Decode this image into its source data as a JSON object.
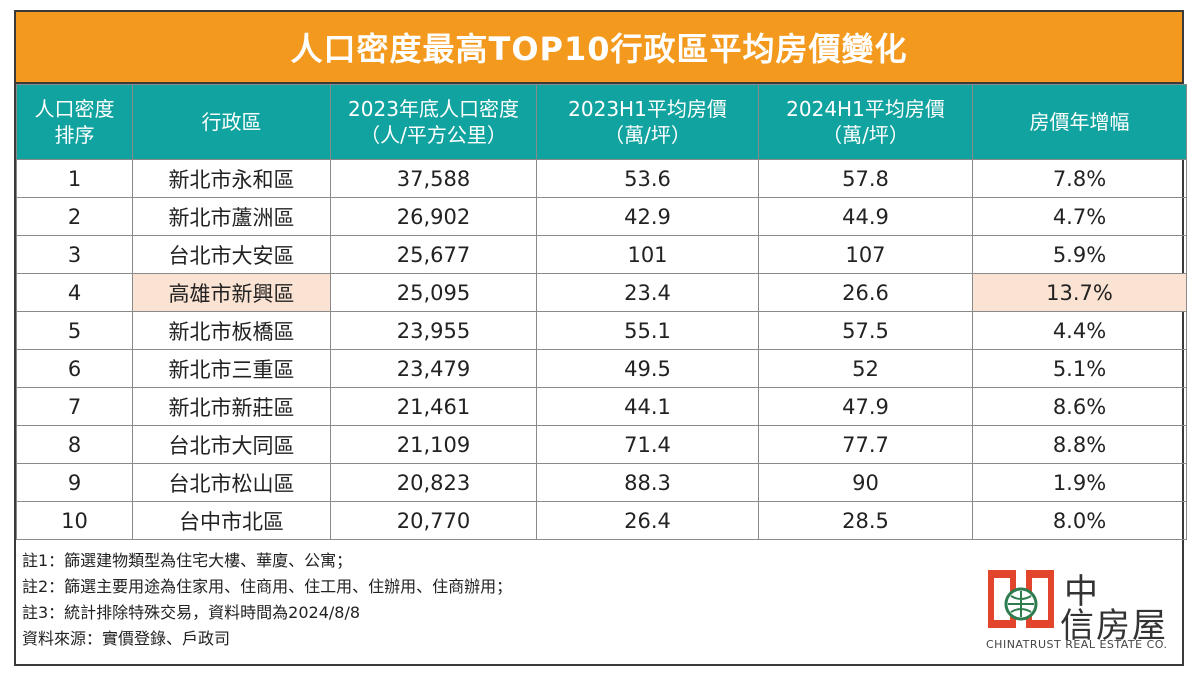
{
  "title": "人口密度最高TOP10行政區平均房價變化",
  "table": {
    "headers": [
      [
        "人口密度",
        "排序"
      ],
      [
        "行政區",
        ""
      ],
      [
        "2023年底人口密度",
        "（人/平方公里）"
      ],
      [
        "2023H1平均房價",
        "（萬/坪）"
      ],
      [
        "2024H1平均房價",
        "（萬/坪）"
      ],
      [
        "房價年增幅",
        ""
      ]
    ],
    "rows": [
      {
        "rank": "1",
        "district": "新北市永和區",
        "density": "37,588",
        "p2023": "53.6",
        "p2024": "57.8",
        "growth": "7.8%"
      },
      {
        "rank": "2",
        "district": "新北市蘆洲區",
        "density": "26,902",
        "p2023": "42.9",
        "p2024": "44.9",
        "growth": "4.7%"
      },
      {
        "rank": "3",
        "district": "台北市大安區",
        "density": "25,677",
        "p2023": "101",
        "p2024": "107",
        "growth": "5.9%"
      },
      {
        "rank": "4",
        "district": "高雄市新興區",
        "density": "25,095",
        "p2023": "23.4",
        "p2024": "26.6",
        "growth": "13.7%",
        "highlight": true
      },
      {
        "rank": "5",
        "district": "新北市板橋區",
        "density": "23,955",
        "p2023": "55.1",
        "p2024": "57.5",
        "growth": "4.4%"
      },
      {
        "rank": "6",
        "district": "新北市三重區",
        "density": "23,479",
        "p2023": "49.5",
        "p2024": "52",
        "growth": "5.1%"
      },
      {
        "rank": "7",
        "district": "新北市新莊區",
        "density": "21,461",
        "p2023": "44.1",
        "p2024": "47.9",
        "growth": "8.6%"
      },
      {
        "rank": "8",
        "district": "台北市大同區",
        "density": "21,109",
        "p2023": "71.4",
        "p2024": "77.7",
        "growth": "8.8%"
      },
      {
        "rank": "9",
        "district": "台北市松山區",
        "density": "20,823",
        "p2023": "88.3",
        "p2024": "90",
        "growth": "1.9%"
      },
      {
        "rank": "10",
        "district": "台中市北區",
        "density": "20,770",
        "p2023": "26.4",
        "p2024": "28.5",
        "growth": "8.0%"
      }
    ]
  },
  "notes": [
    "註1：篩選建物類型為住宅大樓、華廈、公寓；",
    "註2：篩選主要用途為住家用、住商用、住工用、住辦用、住商辦用；",
    "註3：統計排除特殊交易，資料時間為2024/8/8",
    "資料來源：實價登錄、戶政司"
  ],
  "logo": {
    "zh_line1": "中",
    "zh_line2": "信房屋",
    "en": "CHINATRUST REAL ESTATE CO."
  },
  "colors": {
    "title_bg": "#f39a1e",
    "header_bg": "#11a3a0",
    "highlight": "#fbe3d3",
    "logo_red": "#e2452b",
    "logo_green": "#2e7d4f"
  }
}
